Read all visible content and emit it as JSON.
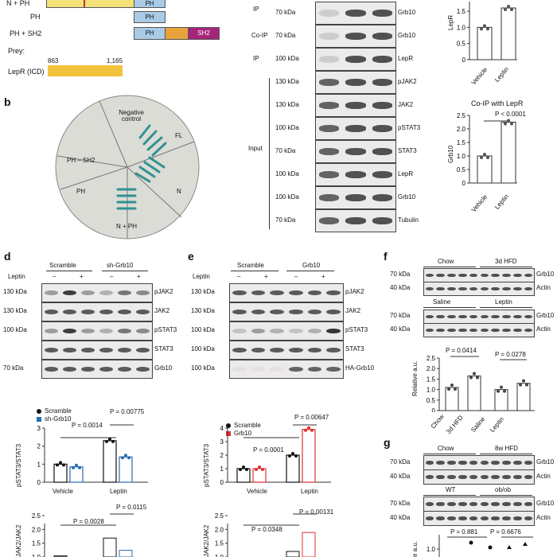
{
  "panel_a": {
    "constructs": [
      {
        "label": "N + PH",
        "segments": [
          "",
          "PH"
        ]
      },
      {
        "label": "PH",
        "segments": [
          "PH"
        ]
      },
      {
        "label": "PH + SH2",
        "segments": [
          "PH",
          "",
          "SH2"
        ]
      }
    ],
    "prey_label": "Prey:",
    "prey_start": "863",
    "prey_end": "1,165",
    "prey_name": "LepR (ICD)"
  },
  "panel_b": {
    "letter": "b",
    "sectors": [
      "Negative control",
      "FL",
      "N",
      "N + PH",
      "PH",
      "PH – SH2"
    ]
  },
  "panel_c": {
    "side_labels": {
      "ip": "IP",
      "coip": "Co-IP",
      "ip2": "IP",
      "input": "Input"
    },
    "rows": [
      {
        "mw": "70 kDa",
        "name": "Grb10"
      },
      {
        "mw": "70 kDa",
        "name": "Grb10"
      },
      {
        "mw": "100 kDa",
        "name": "LepR"
      },
      {
        "mw": "130 kDa",
        "name": "pJAK2"
      },
      {
        "mw": "130 kDa",
        "name": "JAK2"
      },
      {
        "mw": "100 kDa",
        "name": "pSTAT3"
      },
      {
        "mw": "70 kDa",
        "name": "STAT3"
      },
      {
        "mw": "100 kDa",
        "name": "LepR"
      },
      {
        "mw": "100 kDa",
        "name": "Grb10"
      },
      {
        "mw": "70 kDa",
        "name": "Tubulin"
      }
    ],
    "extra_mw": {
      "a": "70 kDa",
      "b": "70 kDa",
      "c": "70 kDa"
    },
    "top_chart": {
      "ylabel": "LepR",
      "ticks": [
        "0",
        "0.5",
        "1.0",
        "1.5"
      ],
      "categories": [
        "Vehicle",
        "Leptin"
      ]
    },
    "bottom_chart": {
      "title": "Co-IP with LepR",
      "pval": "P < 0.0001",
      "ylabel": "Grb10",
      "ticks": [
        "0",
        "0.5",
        "1.0",
        "1.5",
        "2.0",
        "2.5"
      ],
      "categories": [
        "Vehicle",
        "Leptin"
      ]
    }
  },
  "panel_d": {
    "letter": "d",
    "groups": [
      "Scramble",
      "sh-Grb10"
    ],
    "treatment": "Leptin",
    "signs": [
      "–",
      "+",
      "–",
      "+"
    ],
    "rows": [
      {
        "mw": "130 kDa",
        "name": "pJAK2"
      },
      {
        "mw": "130 kDa",
        "name": "JAK2"
      },
      {
        "mw": "100 kDa",
        "name": "pSTAT3"
      },
      {
        "mw": "",
        "name": "STAT3"
      },
      {
        "mw": "70 kDa",
        "name": "Grb10"
      }
    ],
    "legend": [
      "Scramble",
      "sh-Grb10"
    ],
    "chart1": {
      "ylabel": "pSTAT3/STAT3",
      "p1": "P = 0.0014",
      "p2": "P = 0.00775",
      "ticks": [
        "0",
        "1",
        "2",
        "3"
      ],
      "categories": [
        "Vehicle",
        "Leptin"
      ]
    },
    "chart2": {
      "ylabel": "JAK2/JAK2",
      "p1": "P = 0.0028",
      "p2": "P = 0.0115",
      "ticks": [
        "1.0",
        "1.5",
        "2.0",
        "2.5"
      ]
    }
  },
  "panel_e": {
    "letter": "e",
    "groups": [
      "Scramble",
      "Grb10"
    ],
    "treatment": "Leptin",
    "signs": [
      "–",
      "+",
      "–",
      "+"
    ],
    "rows": [
      {
        "mw": "130 kDa",
        "name": "pJAK2"
      },
      {
        "mw": "130 kDa",
        "name": "JAK2"
      },
      {
        "mw": "100 kDa",
        "name": "pSTAT3"
      },
      {
        "mw": "100 kDa",
        "name": "STAT3"
      },
      {
        "mw": "100 kDa",
        "name": "HA-Grb10"
      }
    ],
    "legend": [
      "Scramble",
      "Grb10"
    ],
    "chart1": {
      "ylabel": "pSTAT3/STAT3",
      "p1": "P = 0.0001",
      "p2": "P = 0.00647",
      "ticks": [
        "0",
        "1",
        "2",
        "3",
        "4"
      ],
      "categories": [
        "Vehicle",
        "Leptin"
      ]
    },
    "chart2": {
      "ylabel": "JAK2/JAK2",
      "p1": "P = 0.0348",
      "p2": "P = 0.00131",
      "ticks": [
        "1.0",
        "1.5",
        "2.0",
        "2.5"
      ]
    }
  },
  "panel_f": {
    "letter": "f",
    "top_groups": [
      "Chow",
      "3d HFD"
    ],
    "bottom_groups": [
      "Saline",
      "Leptin"
    ],
    "rows_top": [
      {
        "mw": "70 kDa",
        "name": "Grb10"
      },
      {
        "mw": "40 kDa",
        "name": "Actin"
      }
    ],
    "rows_bottom": [
      {
        "mw": "70 kDa",
        "name": "Grb10"
      },
      {
        "mw": "40 kDa",
        "name": "Actin"
      }
    ],
    "chart": {
      "ylabel": "Relative a.u.",
      "p1": "P = 0.0414",
      "p2": "P = 0.0278",
      "ticks": [
        "0",
        "0.5",
        "1.0",
        "1.5",
        "2.0",
        "2.5"
      ],
      "categories": [
        "Chow",
        "3d HFD",
        "Saline",
        "Leptin"
      ]
    }
  },
  "panel_g": {
    "letter": "g",
    "top_groups": [
      "Chow",
      "8w HFD"
    ],
    "bottom_groups": [
      "WT",
      "ob/ob"
    ],
    "rows_top": [
      {
        "mw": "70 kDa",
        "name": "Grb10"
      },
      {
        "mw": "40 kDa",
        "name": "Actin"
      }
    ],
    "rows_bottom": [
      {
        "mw": "70 kDa",
        "name": "Grb10"
      },
      {
        "mw": "40 kDa",
        "name": "Actin"
      }
    ],
    "chart": {
      "ylabel": "e a.u.",
      "p1": "P = 0.881",
      "p2": "P = 0.6676",
      "ticks": [
        "1.0"
      ]
    }
  },
  "chart_data": [
    {
      "type": "bar",
      "title": "",
      "ylabel": "LepR",
      "categories": [
        "Vehicle",
        "Leptin"
      ],
      "values": [
        1.0,
        1.6
      ],
      "ylim": [
        0,
        1.6
      ]
    },
    {
      "type": "bar",
      "title": "Co-IP with LepR",
      "ylabel": "Grb10",
      "categories": [
        "Vehicle",
        "Leptin"
      ],
      "values": [
        1.0,
        2.25
      ],
      "ylim": [
        0,
        2.5
      ]
    },
    {
      "type": "bar",
      "ylabel": "pSTAT3/STAT3",
      "categories": [
        "Vehicle",
        "Leptin"
      ],
      "series": [
        {
          "name": "Scramble",
          "values": [
            1.0,
            2.3
          ]
        },
        {
          "name": "sh-Grb10",
          "values": [
            0.85,
            1.4
          ]
        }
      ],
      "ylim": [
        0,
        3
      ]
    },
    {
      "type": "bar",
      "ylabel": "pSTAT3/STAT3",
      "categories": [
        "Vehicle",
        "Leptin"
      ],
      "series": [
        {
          "name": "Scramble",
          "values": [
            1.0,
            2.0
          ]
        },
        {
          "name": "Grb10",
          "values": [
            1.0,
            3.9
          ]
        }
      ],
      "ylim": [
        0,
        4
      ]
    },
    {
      "type": "bar",
      "ylabel": "Relative a.u.",
      "categories": [
        "Chow",
        "3d HFD",
        "Saline",
        "Leptin"
      ],
      "values": [
        1.1,
        1.65,
        1.0,
        1.3
      ],
      "ylim": [
        0,
        2.5
      ]
    }
  ],
  "colors": {
    "ph": "#a9cbe6",
    "sh2": "#a5257a",
    "orange": "#e8a33c",
    "prey": "#f3c23c",
    "blue": "#2b6cb0",
    "red": "#e03030"
  }
}
